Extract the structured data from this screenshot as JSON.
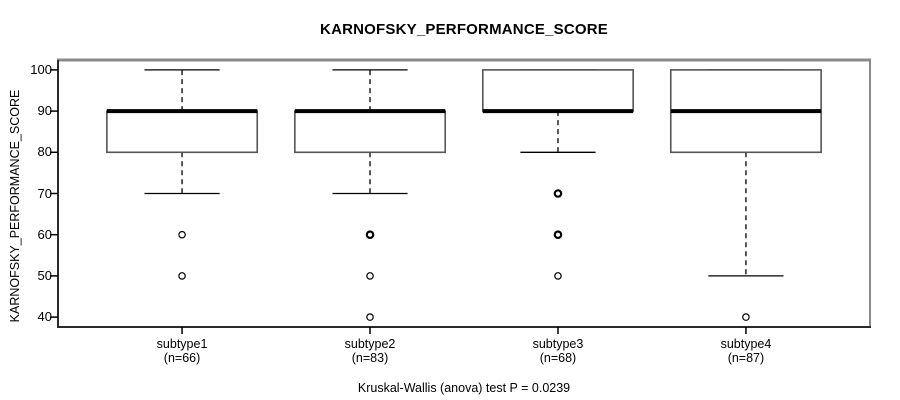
{
  "chart_data": {
    "type": "boxplot",
    "title": "KARNOFSKY_PERFORMANCE_SCORE",
    "ylabel": "KARNOFSKY_PERFORMANCE_SCORE",
    "xlabel": "",
    "annotation": "Kruskal-Wallis (anova) test P = 0.0239",
    "yticks": [
      40,
      50,
      60,
      70,
      80,
      90,
      100
    ],
    "ylim": [
      37.6,
      102.4
    ],
    "grid": false,
    "legend": null,
    "categories": [
      "subtype1",
      "subtype2",
      "subtype3",
      "subtype4"
    ],
    "series": [
      {
        "label": "subtype1",
        "sublabel": "(n=66)",
        "n": 66,
        "q1": 80,
        "median": 90,
        "q3": 90,
        "whisker_low": 70,
        "whisker_high": 100,
        "outliers": [
          {
            "value": 60,
            "bold": false
          },
          {
            "value": 50,
            "bold": false
          }
        ]
      },
      {
        "label": "subtype2",
        "sublabel": "(n=83)",
        "n": 83,
        "q1": 80,
        "median": 90,
        "q3": 90,
        "whisker_low": 70,
        "whisker_high": 100,
        "outliers": [
          {
            "value": 60,
            "bold": true
          },
          {
            "value": 50,
            "bold": false
          },
          {
            "value": 40,
            "bold": false
          }
        ]
      },
      {
        "label": "subtype3",
        "sublabel": "(n=68)",
        "n": 68,
        "q1": 90,
        "median": 90,
        "q3": 100,
        "whisker_low": 80,
        "whisker_high": 100,
        "outliers": [
          {
            "value": 70,
            "bold": true
          },
          {
            "value": 60,
            "bold": true
          },
          {
            "value": 50,
            "bold": false
          }
        ]
      },
      {
        "label": "subtype4",
        "sublabel": "(n=87)",
        "n": 87,
        "q1": 80,
        "median": 90,
        "q3": 100,
        "whisker_low": 50,
        "whisker_high": 100,
        "outliers": [
          {
            "value": 40,
            "bold": false
          }
        ]
      }
    ]
  },
  "colors": {
    "background": "#ffffff",
    "line": "#000000",
    "frame_light": "#8a8a8a",
    "frame_dark": "#2a2a2a",
    "box_stroke": "#555555",
    "box_fill": "#ffffff"
  }
}
